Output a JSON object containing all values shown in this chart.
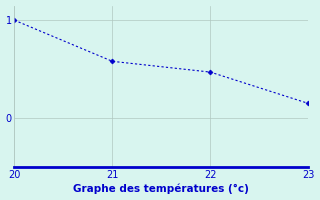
{
  "x": [
    20,
    21,
    22,
    23
  ],
  "y": [
    1.0,
    0.58,
    0.47,
    0.15
  ],
  "xlim": [
    20,
    23
  ],
  "ylim": [
    -0.5,
    1.15
  ],
  "xticks": [
    20,
    21,
    22,
    23
  ],
  "yticks": [
    0,
    1
  ],
  "xlabel": "Graphe des températures (°c)",
  "line_color": "#0000cc",
  "marker": "D",
  "marker_size": 2.5,
  "bg_color": "#d8f5ef",
  "grid_color": "#b0c8c0",
  "xlabel_fontsize": 7.5,
  "tick_fontsize": 7,
  "fig_width": 3.2,
  "fig_height": 2.0
}
